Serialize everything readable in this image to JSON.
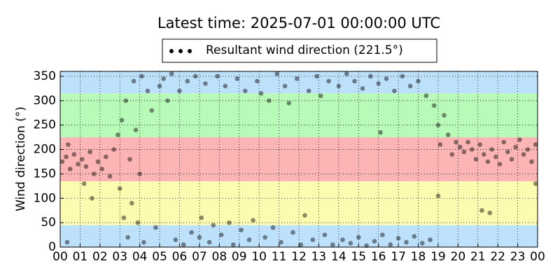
{
  "chart_data": {
    "type": "scatter",
    "title": "Latest time: 2025-07-01 00:00:00 UTC",
    "y_label": "Wind direction (°)",
    "xlim": [
      0,
      24
    ],
    "ylim": [
      0,
      360
    ],
    "xticks": [
      {
        "value": 0,
        "label": "00"
      },
      {
        "value": 1,
        "label": "01"
      },
      {
        "value": 2,
        "label": "02"
      },
      {
        "value": 3,
        "label": "03"
      },
      {
        "value": 4,
        "label": "04"
      },
      {
        "value": 5,
        "label": "05"
      },
      {
        "value": 6,
        "label": "06"
      },
      {
        "value": 7,
        "label": "07"
      },
      {
        "value": 8,
        "label": "08"
      },
      {
        "value": 9,
        "label": "09"
      },
      {
        "value": 10,
        "label": "10"
      },
      {
        "value": 11,
        "label": "11"
      },
      {
        "value": 12,
        "label": "12"
      },
      {
        "value": 13,
        "label": "13"
      },
      {
        "value": 14,
        "label": "14"
      },
      {
        "value": 15,
        "label": "15"
      },
      {
        "value": 16,
        "label": "16"
      },
      {
        "value": 17,
        "label": "17"
      },
      {
        "value": 18,
        "label": "18"
      },
      {
        "value": 19,
        "label": "19"
      },
      {
        "value": 20,
        "label": "20"
      },
      {
        "value": 21,
        "label": "21"
      },
      {
        "value": 22,
        "label": "22"
      },
      {
        "value": 23,
        "label": "23"
      },
      {
        "value": 24,
        "label": "00"
      }
    ],
    "yticks": [
      0,
      50,
      100,
      150,
      200,
      250,
      300,
      350
    ],
    "grid": true,
    "bands": [
      {
        "from": 0,
        "to": 45,
        "color": "#bde0fb"
      },
      {
        "from": 45,
        "to": 135,
        "color": "#fdfbb0"
      },
      {
        "from": 135,
        "to": 225,
        "color": "#fcb4b4"
      },
      {
        "from": 225,
        "to": 315,
        "color": "#b8fbb8"
      },
      {
        "from": 315,
        "to": 360,
        "color": "#bde0fb"
      }
    ],
    "legend": "top",
    "series": [
      {
        "name": "Resultant wind direction (221.5°)",
        "color": "#000000",
        "x": [
          0.1,
          0.3,
          0.5,
          0.7,
          0.9,
          1.1,
          1.3,
          1.5,
          1.7,
          1.9,
          2.1,
          2.3,
          2.5,
          2.7,
          0.4,
          1.2,
          1.6,
          0.35,
          2.9,
          3.0,
          3.1,
          3.2,
          3.3,
          3.4,
          3.5,
          3.6,
          3.7,
          3.8,
          3.9,
          4.0,
          4.1,
          4.2,
          4.4,
          4.6,
          4.8,
          5.0,
          5.2,
          5.4,
          5.6,
          5.8,
          6.0,
          6.2,
          6.4,
          6.6,
          6.8,
          7.0,
          7.1,
          7.3,
          7.5,
          7.7,
          7.9,
          8.1,
          8.3,
          8.5,
          8.7,
          8.9,
          9.1,
          9.3,
          9.5,
          9.7,
          9.9,
          10.1,
          10.3,
          10.5,
          10.7,
          10.9,
          11.1,
          11.3,
          11.5,
          11.7,
          11.9,
          12.1,
          12.3,
          12.5,
          12.7,
          12.9,
          13.1,
          13.3,
          13.5,
          13.7,
          14.0,
          14.2,
          14.4,
          14.6,
          14.8,
          15.0,
          15.2,
          15.4,
          15.6,
          15.8,
          16.0,
          16.2,
          16.4,
          16.6,
          16.8,
          17.0,
          17.2,
          17.4,
          17.6,
          17.8,
          18.0,
          18.2,
          18.4,
          18.6,
          16.1,
          18.8,
          19.0,
          19.1,
          19.3,
          19.5,
          19.7,
          19.9,
          20.1,
          20.3,
          20.5,
          20.7,
          20.9,
          21.1,
          21.3,
          21.5,
          21.7,
          21.9,
          22.1,
          22.3,
          22.5,
          22.7,
          22.9,
          23.1,
          23.3,
          23.5,
          23.7,
          23.9,
          21.2,
          21.6,
          19.0,
          23.9
        ],
        "values": [
          175,
          185,
          160,
          190,
          170,
          180,
          165,
          195,
          150,
          175,
          160,
          185,
          145,
          200,
          210,
          130,
          100,
          10,
          230,
          120,
          260,
          60,
          300,
          20,
          180,
          90,
          340,
          240,
          50,
          150,
          350,
          10,
          320,
          280,
          40,
          330,
          345,
          300,
          355,
          15,
          320,
          5,
          340,
          30,
          350,
          20,
          60,
          335,
          10,
          45,
          350,
          25,
          330,
          50,
          5,
          345,
          35,
          320,
          15,
          55,
          340,
          315,
          20,
          300,
          40,
          355,
          10,
          330,
          295,
          30,
          345,
          5,
          65,
          320,
          15,
          350,
          310,
          25,
          340,
          5,
          330,
          15,
          355,
          8,
          340,
          20,
          325,
          3,
          350,
          12,
          335,
          25,
          345,
          5,
          320,
          18,
          350,
          10,
          330,
          22,
          340,
          8,
          310,
          15,
          235,
          290,
          250,
          210,
          270,
          230,
          190,
          215,
          205,
          195,
          215,
          200,
          180,
          210,
          190,
          175,
          200,
          185,
          170,
          215,
          195,
          180,
          205,
          220,
          190,
          200,
          175,
          210,
          75,
          70,
          105,
          130
        ]
      }
    ]
  }
}
